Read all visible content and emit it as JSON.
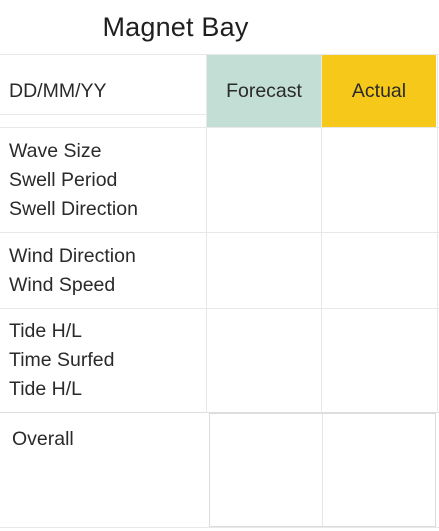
{
  "title": "Magnet Bay",
  "header": {
    "date_format": "DD/MM/YY",
    "forecast_label": "Forecast",
    "actual_label": "Actual"
  },
  "rows": [
    {
      "lines": [
        "Wave Size",
        "Swell Period",
        "Swell Direction"
      ]
    },
    {
      "lines": [
        "Wind Direction",
        "Wind Speed"
      ]
    },
    {
      "lines": [
        "Tide H/L",
        "Time Surfed",
        "Tide H/L"
      ]
    },
    {
      "lines": [
        "Overall"
      ]
    }
  ],
  "colors": {
    "forecast": "#c3ded4",
    "actual": "#f6c81a",
    "grid": "#e8e8e8"
  }
}
